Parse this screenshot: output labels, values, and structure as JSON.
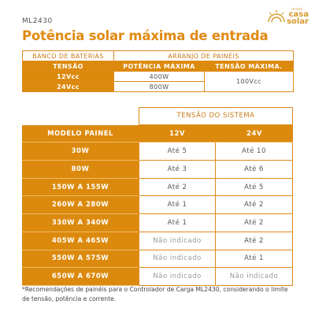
{
  "header": {
    "model": "ML2430",
    "title": "Potência solar máxima de entrada",
    "logo": {
      "small": "minha",
      "brand_line1": "casa",
      "brand_line2": "solar"
    }
  },
  "table1": {
    "bank_header": "BANCO DE BATERIAS",
    "array_header": "ARRANJO DE PAINÉIS",
    "col_tension": "TENSÃO",
    "col_max_power": "POTÊNCIA MÁXIMA",
    "col_max_tension": "TENSÃO MÁXIMA.",
    "rows": [
      {
        "voltage": "12Vcc",
        "power": "400W"
      },
      {
        "voltage": "24Vcc",
        "power": "800W"
      }
    ],
    "max_tension_value": "100Vcc"
  },
  "table2": {
    "system_header": "TENSÃO DO SISTEMA",
    "model_header": "MODELO PAINEL",
    "col_12v": "12V",
    "col_24v": "24V",
    "rows": [
      {
        "model": "30W",
        "v12": "Até 5",
        "v24": "Até 10"
      },
      {
        "model": "80W",
        "v12": "Até 3",
        "v24": "Até 6"
      },
      {
        "model": "150W A 155W",
        "v12": "Até 2",
        "v24": "Até 5"
      },
      {
        "model": "260W A 280W",
        "v12": "Até 1",
        "v24": "Até 2"
      },
      {
        "model": "330W A 340W",
        "v12": "Até 1",
        "v24": "Até 2"
      },
      {
        "model": "405W A 465W",
        "v12": "Não indicado",
        "v24": "Até 2"
      },
      {
        "model": "550W A 575W",
        "v12": "Não indicado",
        "v24": "Até 1"
      },
      {
        "model": "650W A 670W",
        "v12": "Não indicado",
        "v24": "Não indicado"
      }
    ]
  },
  "footnote": "*Recomendações de painéis para o Controlador de Carga ML2430, considerando o limite de tensão, potência e corrente.",
  "colors": {
    "accent": "#e18a12",
    "orange_fill": "#dc8a0d",
    "border": "#e08a1a"
  }
}
